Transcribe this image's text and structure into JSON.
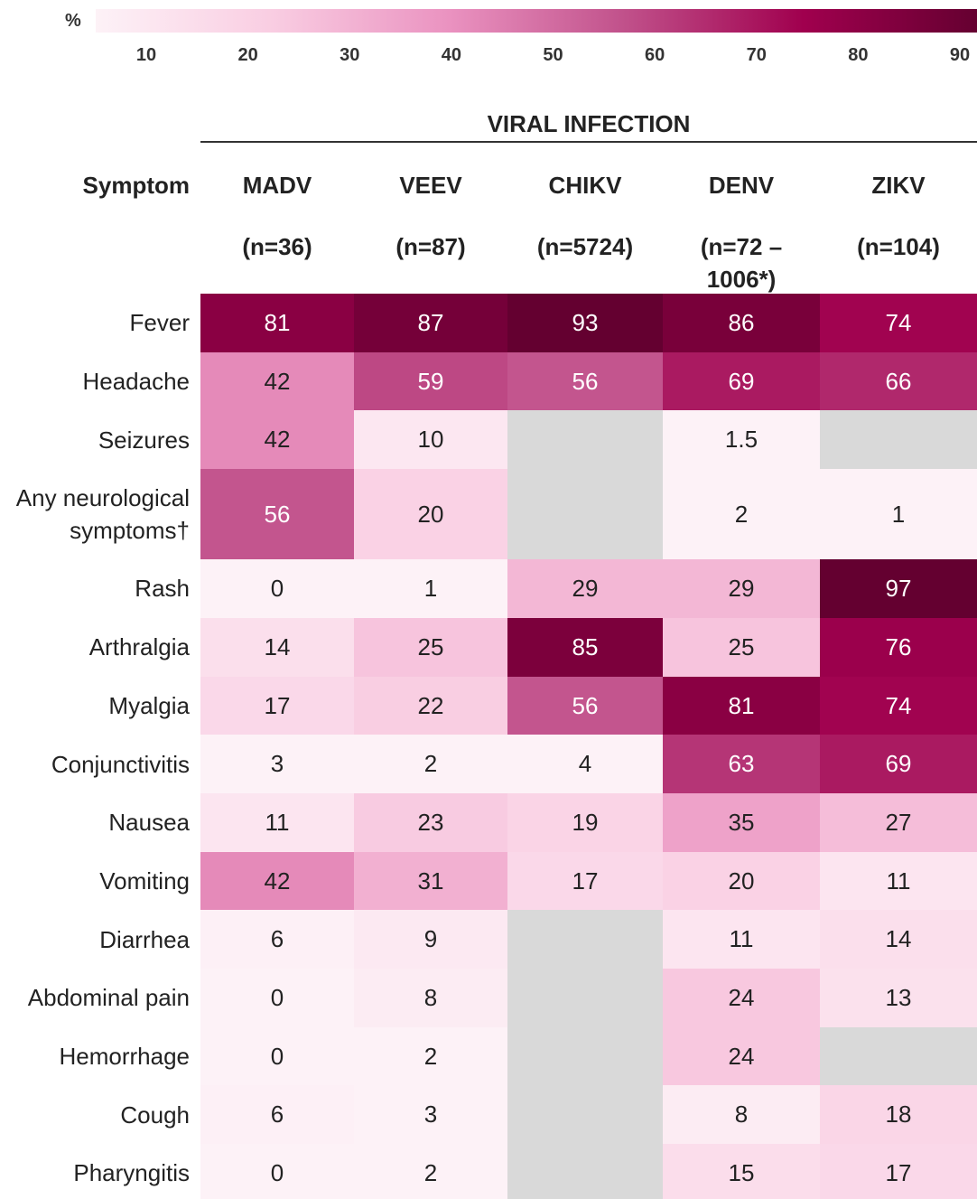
{
  "chart_data": {
    "type": "heatmap",
    "colorbar_label": "%",
    "clim": [
      5,
      92
    ],
    "cticks": [
      10,
      20,
      30,
      40,
      50,
      60,
      70,
      80,
      90
    ],
    "colormap": [
      "#fdf2f7",
      "#f9cde2",
      "#ea92c0",
      "#c0508a",
      "#a0004e",
      "#640030"
    ],
    "na_color": "#d9d9d9",
    "title": "VIRAL INFECTION",
    "row_header": "Symptom",
    "columns": [
      {
        "name": "MADV",
        "n": "(n=36)"
      },
      {
        "name": "VEEV",
        "n": "(n=87)"
      },
      {
        "name": "CHIKV",
        "n": "(n=5724)"
      },
      {
        "name": "DENV",
        "n": "(n=72 – 1006*)"
      },
      {
        "name": "ZIKV",
        "n": "(n=104)"
      }
    ],
    "rows": [
      "Fever",
      "Headache",
      "Seizures",
      "Any neurological symptoms†",
      "Rash",
      "Arthralgia",
      "Myalgia",
      "Conjunctivitis",
      "Nausea",
      "Vomiting",
      "Diarrhea",
      "Abdominal pain",
      "Hemorrhage",
      "Cough",
      "Pharyngitis"
    ],
    "values": [
      [
        81,
        87,
        93,
        86,
        74
      ],
      [
        42,
        59,
        56,
        69,
        66
      ],
      [
        42,
        10,
        null,
        1.5,
        null
      ],
      [
        56,
        20,
        null,
        2,
        1
      ],
      [
        0,
        1,
        29,
        29,
        97
      ],
      [
        14,
        25,
        85,
        25,
        76
      ],
      [
        17,
        22,
        56,
        81,
        74
      ],
      [
        3,
        2,
        4,
        63,
        69
      ],
      [
        11,
        23,
        19,
        35,
        27
      ],
      [
        42,
        31,
        17,
        20,
        11
      ],
      [
        6,
        9,
        null,
        11,
        14
      ],
      [
        0,
        8,
        null,
        24,
        13
      ],
      [
        0,
        2,
        null,
        24,
        null
      ],
      [
        6,
        3,
        null,
        8,
        18
      ],
      [
        0,
        2,
        null,
        15,
        17
      ]
    ]
  }
}
